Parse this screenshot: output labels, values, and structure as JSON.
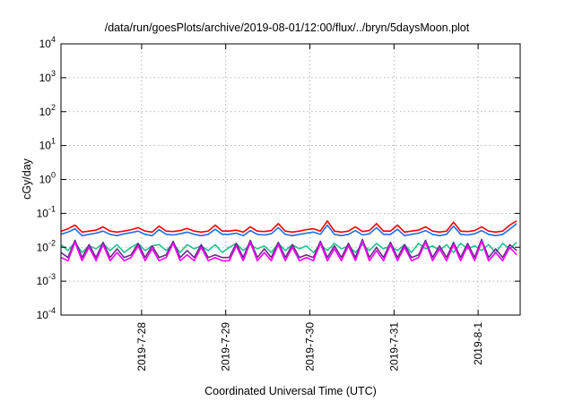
{
  "chart_data": {
    "type": "line",
    "title": "/data/run/goesPlots/archive/2019-08-01/12:00/flux/../bryn/5daysMoon.plot",
    "xlabel": "Coordinated Universal Time (UTC)",
    "ylabel": "cGy/day",
    "x_range": [
      "2019-07-27 01:00",
      "2019-08-01 12:00"
    ],
    "y_scale": "log",
    "ylim": [
      0.0001,
      10000
    ],
    "grid": true,
    "legend": "none",
    "x_ticks": [
      {
        "value": "2019-07-28 00:00",
        "label": "2019-7-28"
      },
      {
        "value": "2019-07-29 00:00",
        "label": "2019-7-29"
      },
      {
        "value": "2019-07-30 00:00",
        "label": "2019-7-30"
      },
      {
        "value": "2019-07-31 00:00",
        "label": "2019-7-31"
      },
      {
        "value": "2019-08-01 00:00",
        "label": "2019-8-1"
      }
    ],
    "y_ticks": [
      {
        "value": 0.0001,
        "base": "10",
        "exp": "-4"
      },
      {
        "value": 0.001,
        "base": "10",
        "exp": "-3"
      },
      {
        "value": 0.01,
        "base": "10",
        "exp": "-2"
      },
      {
        "value": 0.1,
        "base": "10",
        "exp": "-1"
      },
      {
        "value": 1,
        "base": "10",
        "exp": "0"
      },
      {
        "value": 10,
        "base": "10",
        "exp": "1"
      },
      {
        "value": 100,
        "base": "10",
        "exp": "2"
      },
      {
        "value": 1000,
        "base": "10",
        "exp": "3"
      },
      {
        "value": 10000,
        "base": "10",
        "exp": "4"
      }
    ],
    "x": [
      "2019-07-27 01:00",
      "2019-07-27 03:00",
      "2019-07-27 05:00",
      "2019-07-27 07:00",
      "2019-07-27 09:00",
      "2019-07-27 11:00",
      "2019-07-27 13:00",
      "2019-07-27 15:00",
      "2019-07-27 17:00",
      "2019-07-27 19:00",
      "2019-07-27 21:00",
      "2019-07-27 23:00",
      "2019-07-28 01:00",
      "2019-07-28 03:00",
      "2019-07-28 05:00",
      "2019-07-28 07:00",
      "2019-07-28 09:00",
      "2019-07-28 11:00",
      "2019-07-28 13:00",
      "2019-07-28 15:00",
      "2019-07-28 17:00",
      "2019-07-28 19:00",
      "2019-07-28 21:00",
      "2019-07-28 23:00",
      "2019-07-29 01:00",
      "2019-07-29 03:00",
      "2019-07-29 05:00",
      "2019-07-29 07:00",
      "2019-07-29 09:00",
      "2019-07-29 11:00",
      "2019-07-29 13:00",
      "2019-07-29 15:00",
      "2019-07-29 17:00",
      "2019-07-29 19:00",
      "2019-07-29 21:00",
      "2019-07-29 23:00",
      "2019-07-30 01:00",
      "2019-07-30 03:00",
      "2019-07-30 05:00",
      "2019-07-30 07:00",
      "2019-07-30 09:00",
      "2019-07-30 11:00",
      "2019-07-30 13:00",
      "2019-07-30 15:00",
      "2019-07-30 17:00",
      "2019-07-30 19:00",
      "2019-07-30 21:00",
      "2019-07-30 23:00",
      "2019-07-31 01:00",
      "2019-07-31 03:00",
      "2019-07-31 05:00",
      "2019-07-31 07:00",
      "2019-07-31 09:00",
      "2019-07-31 11:00",
      "2019-07-31 13:00",
      "2019-07-31 15:00",
      "2019-07-31 17:00",
      "2019-07-31 19:00",
      "2019-07-31 21:00",
      "2019-07-31 23:00",
      "2019-08-01 01:00",
      "2019-08-01 03:00",
      "2019-08-01 05:00",
      "2019-08-01 07:00",
      "2019-08-01 09:00",
      "2019-08-01 11:00"
    ],
    "series": [
      {
        "color": "#ff0000",
        "values": [
          0.03,
          0.035,
          0.045,
          0.028,
          0.03,
          0.032,
          0.04,
          0.03,
          0.028,
          0.03,
          0.033,
          0.038,
          0.03,
          0.028,
          0.042,
          0.03,
          0.029,
          0.031,
          0.036,
          0.03,
          0.028,
          0.03,
          0.045,
          0.03,
          0.03,
          0.032,
          0.028,
          0.04,
          0.03,
          0.029,
          0.031,
          0.05,
          0.03,
          0.028,
          0.03,
          0.033,
          0.035,
          0.03,
          0.06,
          0.03,
          0.028,
          0.03,
          0.04,
          0.029,
          0.031,
          0.05,
          0.03,
          0.03,
          0.045,
          0.028,
          0.03,
          0.032,
          0.04,
          0.03,
          0.028,
          0.03,
          0.055,
          0.03,
          0.029,
          0.031,
          0.04,
          0.03,
          0.028,
          0.03,
          0.045,
          0.06
        ]
      },
      {
        "color": "#1e6ee6",
        "values": [
          0.024,
          0.028,
          0.035,
          0.022,
          0.024,
          0.026,
          0.03,
          0.024,
          0.022,
          0.025,
          0.027,
          0.03,
          0.024,
          0.022,
          0.033,
          0.024,
          0.023,
          0.025,
          0.028,
          0.024,
          0.022,
          0.024,
          0.034,
          0.024,
          0.024,
          0.026,
          0.022,
          0.031,
          0.024,
          0.023,
          0.025,
          0.038,
          0.024,
          0.022,
          0.024,
          0.026,
          0.028,
          0.024,
          0.045,
          0.024,
          0.022,
          0.024,
          0.031,
          0.023,
          0.025,
          0.038,
          0.024,
          0.024,
          0.034,
          0.022,
          0.024,
          0.026,
          0.031,
          0.024,
          0.022,
          0.024,
          0.042,
          0.024,
          0.023,
          0.025,
          0.031,
          0.024,
          0.022,
          0.024,
          0.034,
          0.05
        ]
      },
      {
        "color": "#20c090",
        "values": [
          0.012,
          0.008,
          0.014,
          0.007,
          0.011,
          0.009,
          0.013,
          0.008,
          0.012,
          0.007,
          0.01,
          0.013,
          0.008,
          0.011,
          0.012,
          0.008,
          0.013,
          0.007,
          0.012,
          0.009,
          0.011,
          0.008,
          0.012,
          0.007,
          0.01,
          0.013,
          0.008,
          0.012,
          0.009,
          0.011,
          0.007,
          0.013,
          0.008,
          0.012,
          0.009,
          0.011,
          0.007,
          0.012,
          0.008,
          0.013,
          0.009,
          0.011,
          0.007,
          0.012,
          0.008,
          0.013,
          0.009,
          0.011,
          0.008,
          0.012,
          0.007,
          0.013,
          0.009,
          0.011,
          0.008,
          0.012,
          0.007,
          0.013,
          0.009,
          0.011,
          0.008,
          0.012,
          0.007,
          0.013,
          0.009,
          0.014
        ]
      },
      {
        "color": "#6a2a8a",
        "values": [
          0.007,
          0.005,
          0.016,
          0.005,
          0.012,
          0.005,
          0.014,
          0.005,
          0.009,
          0.005,
          0.006,
          0.013,
          0.005,
          0.011,
          0.005,
          0.006,
          0.015,
          0.005,
          0.008,
          0.005,
          0.012,
          0.005,
          0.006,
          0.005,
          0.005,
          0.013,
          0.005,
          0.016,
          0.005,
          0.009,
          0.005,
          0.014,
          0.005,
          0.012,
          0.005,
          0.006,
          0.005,
          0.015,
          0.005,
          0.011,
          0.005,
          0.013,
          0.005,
          0.017,
          0.005,
          0.01,
          0.005,
          0.014,
          0.005,
          0.012,
          0.005,
          0.006,
          0.016,
          0.005,
          0.011,
          0.005,
          0.014,
          0.005,
          0.013,
          0.005,
          0.017,
          0.005,
          0.009,
          0.005,
          0.012,
          0.008
        ]
      },
      {
        "color": "#ff00ff",
        "values": [
          0.005,
          0.004,
          0.014,
          0.004,
          0.01,
          0.004,
          0.012,
          0.004,
          0.007,
          0.004,
          0.005,
          0.011,
          0.004,
          0.009,
          0.004,
          0.005,
          0.013,
          0.004,
          0.006,
          0.004,
          0.01,
          0.004,
          0.005,
          0.004,
          0.004,
          0.011,
          0.004,
          0.014,
          0.004,
          0.007,
          0.004,
          0.012,
          0.004,
          0.01,
          0.004,
          0.005,
          0.004,
          0.013,
          0.004,
          0.009,
          0.004,
          0.011,
          0.004,
          0.015,
          0.004,
          0.008,
          0.004,
          0.012,
          0.004,
          0.01,
          0.004,
          0.005,
          0.014,
          0.004,
          0.009,
          0.004,
          0.012,
          0.004,
          0.011,
          0.004,
          0.015,
          0.004,
          0.007,
          0.004,
          0.01,
          0.006
        ]
      }
    ]
  }
}
